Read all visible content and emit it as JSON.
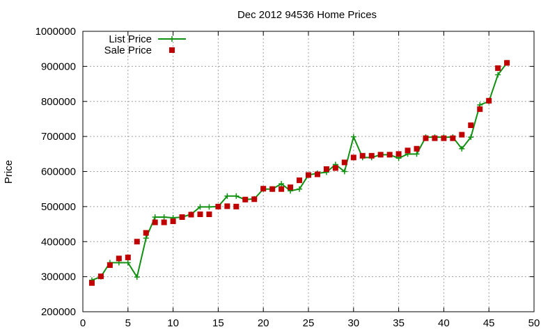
{
  "chart_data": {
    "type": "line",
    "title": "Dec 2012 94536 Home Prices",
    "xlabel": "",
    "ylabel": "Price",
    "xlim": [
      0,
      50
    ],
    "ylim": [
      200000,
      1000000
    ],
    "x_ticks": [
      0,
      5,
      10,
      15,
      20,
      25,
      30,
      35,
      40,
      45,
      50
    ],
    "y_ticks": [
      200000,
      300000,
      400000,
      500000,
      600000,
      700000,
      800000,
      900000,
      1000000
    ],
    "grid": true,
    "legend_position": "top-left",
    "series": [
      {
        "name": "List Price",
        "style": "line-plus",
        "color": "#109010",
        "x": [
          1,
          2,
          3,
          4,
          5,
          6,
          7,
          8,
          9,
          10,
          11,
          12,
          13,
          14,
          15,
          16,
          17,
          18,
          19,
          20,
          21,
          22,
          23,
          24,
          25,
          26,
          27,
          28,
          29,
          30,
          31,
          32,
          33,
          34,
          35,
          36,
          37,
          38,
          39,
          40,
          41,
          42,
          43,
          44,
          45,
          46,
          47
        ],
        "values": [
          290000,
          300000,
          340000,
          340000,
          340000,
          299000,
          410000,
          470000,
          470000,
          468000,
          470000,
          478000,
          499000,
          499000,
          500000,
          530000,
          530000,
          520000,
          522000,
          550000,
          550000,
          565000,
          545000,
          550000,
          590000,
          595000,
          598000,
          620000,
          600000,
          699000,
          640000,
          640000,
          648000,
          648000,
          638000,
          650000,
          650000,
          698000,
          698000,
          698000,
          698000,
          665000,
          698000,
          790000,
          800000,
          876000,
          910000
        ]
      },
      {
        "name": "Sale Price",
        "style": "square-markers",
        "color": "#c00000",
        "x": [
          1,
          2,
          3,
          4,
          5,
          6,
          7,
          8,
          9,
          10,
          11,
          12,
          13,
          14,
          15,
          16,
          17,
          18,
          19,
          20,
          21,
          22,
          23,
          24,
          25,
          26,
          27,
          28,
          29,
          30,
          31,
          32,
          33,
          34,
          35,
          36,
          37,
          38,
          39,
          40,
          41,
          42,
          43,
          44,
          45,
          46,
          47
        ],
        "values": [
          282000,
          301000,
          333000,
          352000,
          355000,
          400000,
          425000,
          455000,
          455000,
          458000,
          470000,
          477000,
          478000,
          478000,
          500000,
          501000,
          500000,
          520000,
          521000,
          551000,
          550000,
          550000,
          555000,
          575000,
          590000,
          592000,
          607000,
          610000,
          626000,
          640000,
          645000,
          645000,
          648000,
          648000,
          650000,
          660000,
          665000,
          695000,
          695000,
          695000,
          695000,
          705000,
          732000,
          778000,
          802000,
          895000,
          910000
        ]
      }
    ]
  }
}
